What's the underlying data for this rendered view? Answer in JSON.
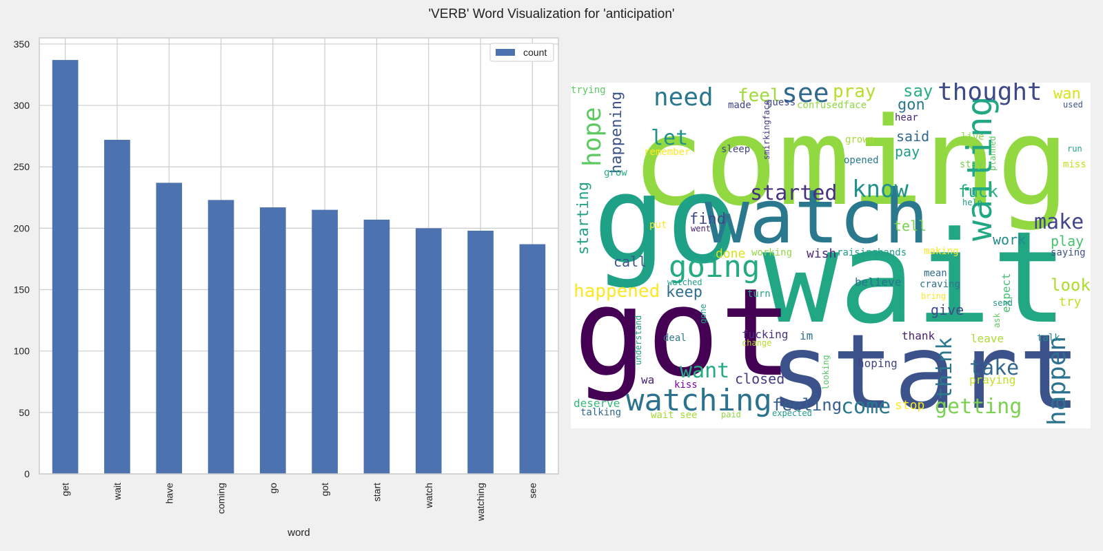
{
  "suptitle": "'VERB' Word Visualization for 'anticipation'",
  "chart_data": [
    {
      "type": "bar",
      "title": "",
      "categories": [
        "get",
        "wait",
        "have",
        "coming",
        "go",
        "got",
        "start",
        "watch",
        "watching",
        "see"
      ],
      "series": [
        {
          "name": "count",
          "values": [
            337,
            272,
            237,
            223,
            217,
            215,
            207,
            200,
            198,
            187
          ],
          "color": "#4c72b0"
        }
      ],
      "xlabel": "word",
      "ylabel": "",
      "ylim": [
        0,
        355
      ],
      "yticks": [
        0,
        50,
        100,
        150,
        200,
        250,
        300,
        350
      ],
      "grid": true,
      "legend": "top-right"
    }
  ],
  "wordcloud": {
    "background": "#ffffff",
    "words": [
      "coming",
      "go",
      "wait",
      "got",
      "start",
      "watch",
      "watching",
      "waiting",
      "going",
      "need",
      "see",
      "hope",
      "thought",
      "happen",
      "know",
      "started",
      "make",
      "happened",
      "let",
      "think",
      "take",
      "getting",
      "want",
      "come",
      "feel",
      "pray",
      "say",
      "gon",
      "wan",
      "happening",
      "starting",
      "fuck",
      "feeling",
      "find",
      "tell",
      "keep",
      "closed",
      "look",
      "play",
      "work",
      "call",
      "pay",
      "said",
      "give",
      "done",
      "wish",
      "im",
      "fucking",
      "expect",
      "believe",
      "deserve",
      "hoping",
      "praying",
      "thank",
      "leave",
      "stop",
      "wa",
      "talk",
      "try",
      "trying",
      "made",
      "guess",
      "confusedface",
      "hear",
      "grown",
      "live",
      "run",
      "remember",
      "sleep",
      "opened",
      "grow",
      "stay",
      "miss",
      "planned",
      "used",
      "smirkingface",
      "put",
      "went",
      "help",
      "saying",
      "working",
      "raisinghands",
      "making",
      "mean",
      "craving",
      "bring",
      "send",
      "ask",
      "watched",
      "turn",
      "understand",
      "gone",
      "deal",
      "change",
      "kiss",
      "looking",
      "talking",
      "wait see",
      "paid",
      "expected"
    ]
  }
}
